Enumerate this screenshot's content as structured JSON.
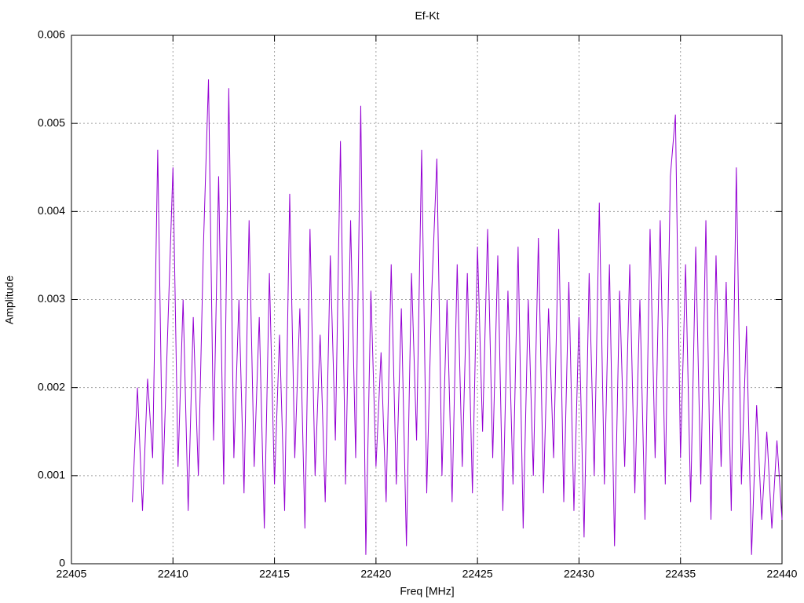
{
  "chart_data": {
    "type": "line",
    "title": "Ef-Kt",
    "x_label": "Freq [MHz]",
    "y_label": "Amplitude",
    "color": "#9400d3",
    "grid": true,
    "xlim": [
      22405,
      22440
    ],
    "xticks": [
      22405,
      22410,
      22415,
      22420,
      22425,
      22430,
      22435,
      22440
    ],
    "ylim": [
      0,
      0.006
    ],
    "yticks": [
      0,
      0.001,
      0.002,
      0.003,
      0.004,
      0.005,
      0.006
    ],
    "x": [
      22408,
      22408.25,
      22408.5,
      22408.75,
      22409,
      22409.25,
      22409.5,
      22409.75,
      22410,
      22410.25,
      22410.5,
      22410.75,
      22411,
      22411.25,
      22411.5,
      22411.75,
      22412,
      22412.25,
      22412.5,
      22412.75,
      22413,
      22413.25,
      22413.5,
      22413.75,
      22414,
      22414.25,
      22414.5,
      22414.75,
      22415,
      22415.25,
      22415.5,
      22415.75,
      22416,
      22416.25,
      22416.5,
      22416.75,
      22417,
      22417.25,
      22417.5,
      22417.75,
      22418,
      22418.25,
      22418.5,
      22418.75,
      22419,
      22419.25,
      22419.5,
      22419.75,
      22420,
      22420.25,
      22420.5,
      22420.75,
      22421,
      22421.25,
      22421.5,
      22421.75,
      22422,
      22422.25,
      22422.5,
      22422.75,
      22423,
      22423.25,
      22423.5,
      22423.75,
      22424,
      22424.25,
      22424.5,
      22424.75,
      22425,
      22425.25,
      22425.5,
      22425.75,
      22426,
      22426.25,
      22426.5,
      22426.75,
      22427,
      22427.25,
      22427.5,
      22427.75,
      22428,
      22428.25,
      22428.5,
      22428.75,
      22429,
      22429.25,
      22429.5,
      22429.75,
      22430,
      22430.25,
      22430.5,
      22430.75,
      22431,
      22431.25,
      22431.5,
      22431.75,
      22432,
      22432.25,
      22432.5,
      22432.75,
      22433,
      22433.25,
      22433.5,
      22433.75,
      22434,
      22434.25,
      22434.5,
      22434.75,
      22435,
      22435.25,
      22435.5,
      22435.75,
      22436,
      22436.25,
      22436.5,
      22436.75,
      22437,
      22437.25,
      22437.5,
      22437.75,
      22438,
      22438.25,
      22438.5,
      22438.75,
      22439,
      22439.25,
      22439.5,
      22439.75,
      22440
    ],
    "values": [
      0.0007,
      0.002,
      0.0006,
      0.0021,
      0.0012,
      0.0047,
      0.0009,
      0.0027,
      0.0045,
      0.0011,
      0.003,
      0.0006,
      0.0028,
      0.001,
      0.0036,
      0.0055,
      0.0014,
      0.0044,
      0.0009,
      0.0054,
      0.0012,
      0.003,
      0.0008,
      0.0039,
      0.0011,
      0.0028,
      0.0004,
      0.0033,
      0.0009,
      0.0026,
      0.0006,
      0.0042,
      0.0012,
      0.0029,
      0.0004,
      0.0038,
      0.001,
      0.0026,
      0.0007,
      0.0035,
      0.0014,
      0.0048,
      0.0009,
      0.0039,
      0.0012,
      0.0052,
      0.0001,
      0.0031,
      0.0011,
      0.0024,
      0.0007,
      0.0034,
      0.0009,
      0.0029,
      0.0002,
      0.0033,
      0.0014,
      0.0047,
      0.0008,
      0.0031,
      0.0046,
      0.001,
      0.003,
      0.0007,
      0.0034,
      0.0011,
      0.0033,
      0.0008,
      0.0036,
      0.0015,
      0.0038,
      0.0012,
      0.0035,
      0.0006,
      0.0031,
      0.0009,
      0.0036,
      0.0004,
      0.003,
      0.001,
      0.0037,
      0.0008,
      0.0029,
      0.0012,
      0.0038,
      0.0007,
      0.0032,
      0.0006,
      0.0028,
      0.0003,
      0.0033,
      0.001,
      0.0041,
      0.0009,
      0.0034,
      0.0002,
      0.0031,
      0.0011,
      0.0034,
      0.0008,
      0.003,
      0.0005,
      0.0038,
      0.0012,
      0.0039,
      0.0009,
      0.0044,
      0.0051,
      0.0012,
      0.0034,
      0.0007,
      0.0036,
      0.0009,
      0.0039,
      0.0005,
      0.0035,
      0.0011,
      0.0032,
      0.0006,
      0.0045,
      0.0009,
      0.0027,
      0.0001,
      0.0018,
      0.0005,
      0.0015,
      0.0004,
      0.0014,
      0.0005
    ]
  }
}
